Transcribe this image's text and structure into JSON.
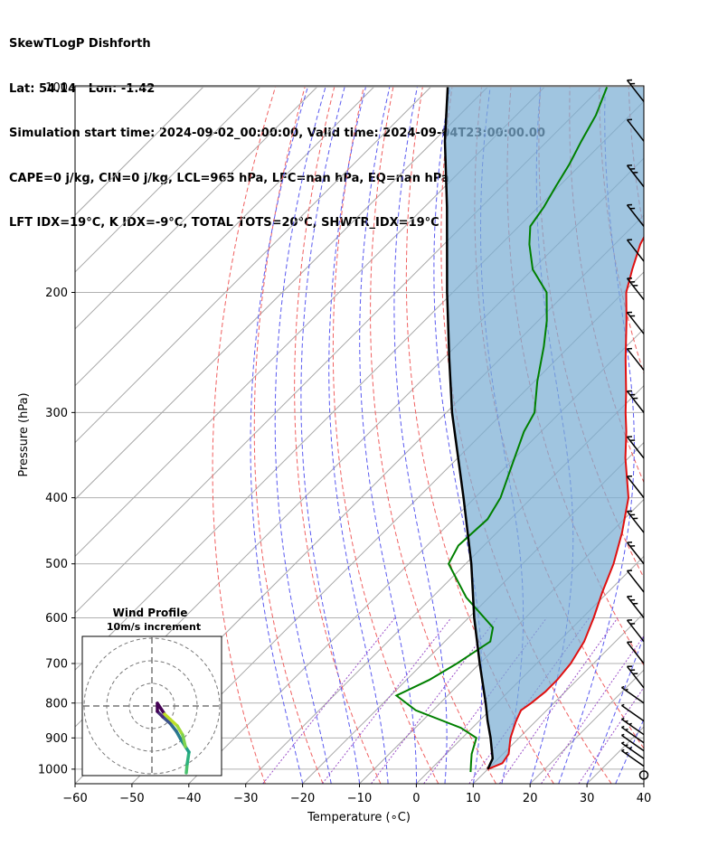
{
  "chart_data": {
    "type": "line",
    "title_lines": [
      "SkewTLogP Dishforth",
      "Lat: 54.14   Lon: -1.42",
      "Simulation start time: 2024-09-02_00:00:00, Valid time: 2024-09-04T23:00:00.00",
      "CAPE=0 j/kg, CIN=0 j/kg, LCL=965 hPa, LFC=nan hPa, EQ=nan hPa",
      "LFT IDX=19°C, K IDX=-9°C, TOTAL TOTS=20°C, SHWTR_IDX=19°C"
    ],
    "xlabel": "Temperature (∘C)",
    "ylabel": "Pressure (hPa)",
    "xlim": [
      -60,
      40
    ],
    "ylim": [
      1050,
      100
    ],
    "x_ticks": [
      "−60",
      "−50",
      "−40",
      "−30",
      "−20",
      "−10",
      "0",
      "10",
      "20",
      "30",
      "40"
    ],
    "x_tick_values": [
      -60,
      -50,
      -40,
      -30,
      -20,
      -10,
      0,
      10,
      20,
      30,
      40
    ],
    "y_ticks": [
      "100",
      "200",
      "300",
      "400",
      "500",
      "600",
      "700",
      "800",
      "900",
      "1000"
    ],
    "y_tick_values": [
      100,
      200,
      300,
      400,
      500,
      600,
      700,
      800,
      900,
      1000
    ],
    "series": [
      {
        "name": "Temperature",
        "color": "#e01010",
        "points": [
          [
            1000,
            10
          ],
          [
            980,
            11.5
          ],
          [
            950,
            11
          ],
          [
            900,
            8.5
          ],
          [
            850,
            6.5
          ],
          [
            820,
            5.5
          ],
          [
            800,
            6
          ],
          [
            770,
            6.5
          ],
          [
            740,
            6.5
          ],
          [
            700,
            6
          ],
          [
            650,
            4.5
          ],
          [
            600,
            2
          ],
          [
            550,
            -1
          ],
          [
            500,
            -4
          ],
          [
            450,
            -8
          ],
          [
            400,
            -13
          ],
          [
            350,
            -20.5
          ],
          [
            320,
            -25
          ],
          [
            300,
            -28.5
          ],
          [
            280,
            -32
          ],
          [
            250,
            -38
          ],
          [
            220,
            -44.5
          ],
          [
            200,
            -49.5
          ],
          [
            185,
            -52.5
          ],
          [
            170,
            -55.5
          ],
          [
            160,
            -57
          ],
          [
            150,
            -57.5
          ],
          [
            140,
            -58
          ],
          [
            130,
            -58.5
          ],
          [
            120,
            -60
          ],
          [
            110,
            -63
          ],
          [
            100,
            -64
          ]
        ]
      },
      {
        "name": "Dewpoint",
        "color": "#008000",
        "points": [
          [
            1010,
            7.5
          ],
          [
            980,
            6
          ],
          [
            950,
            4.5
          ],
          [
            900,
            2.5
          ],
          [
            870,
            -2
          ],
          [
            820,
            -13
          ],
          [
            780,
            -19
          ],
          [
            740,
            -16
          ],
          [
            700,
            -14
          ],
          [
            650,
            -12
          ],
          [
            620,
            -14
          ],
          [
            560,
            -24
          ],
          [
            500,
            -33
          ],
          [
            470,
            -34.5
          ],
          [
            430,
            -34
          ],
          [
            400,
            -35.5
          ],
          [
            350,
            -40
          ],
          [
            320,
            -43
          ],
          [
            300,
            -44.5
          ],
          [
            270,
            -49.5
          ],
          [
            240,
            -54.5
          ],
          [
            220,
            -58.5
          ],
          [
            200,
            -63.5
          ],
          [
            185,
            -70
          ],
          [
            170,
            -75
          ],
          [
            160,
            -78
          ],
          [
            150,
            -79
          ],
          [
            140,
            -80.5
          ],
          [
            130,
            -82
          ],
          [
            120,
            -84
          ],
          [
            110,
            -86
          ],
          [
            100,
            -89
          ]
        ]
      },
      {
        "name": "Parcel",
        "color": "#000000",
        "points": [
          [
            1000,
            10
          ],
          [
            965,
            9
          ],
          [
            900,
            5
          ],
          [
            850,
            1.5
          ],
          [
            800,
            -2
          ],
          [
            700,
            -10
          ],
          [
            600,
            -19
          ],
          [
            500,
            -29
          ],
          [
            400,
            -42
          ],
          [
            300,
            -59
          ],
          [
            250,
            -69
          ],
          [
            200,
            -81
          ],
          [
            150,
            -96
          ],
          [
            120,
            -108
          ],
          [
            100,
            -117
          ]
        ]
      }
    ],
    "wind_barbs": {
      "pressures": [
        1020,
        990,
        965,
        940,
        915,
        890,
        850,
        800,
        760,
        700,
        650,
        600,
        550,
        500,
        450,
        400,
        350,
        300,
        260,
        230,
        205,
        180,
        160,
        140,
        120,
        105
      ]
    },
    "inset": {
      "title": "Wind Profile",
      "subtitle": "10m/s increment"
    },
    "legend": "none",
    "grid": true
  }
}
